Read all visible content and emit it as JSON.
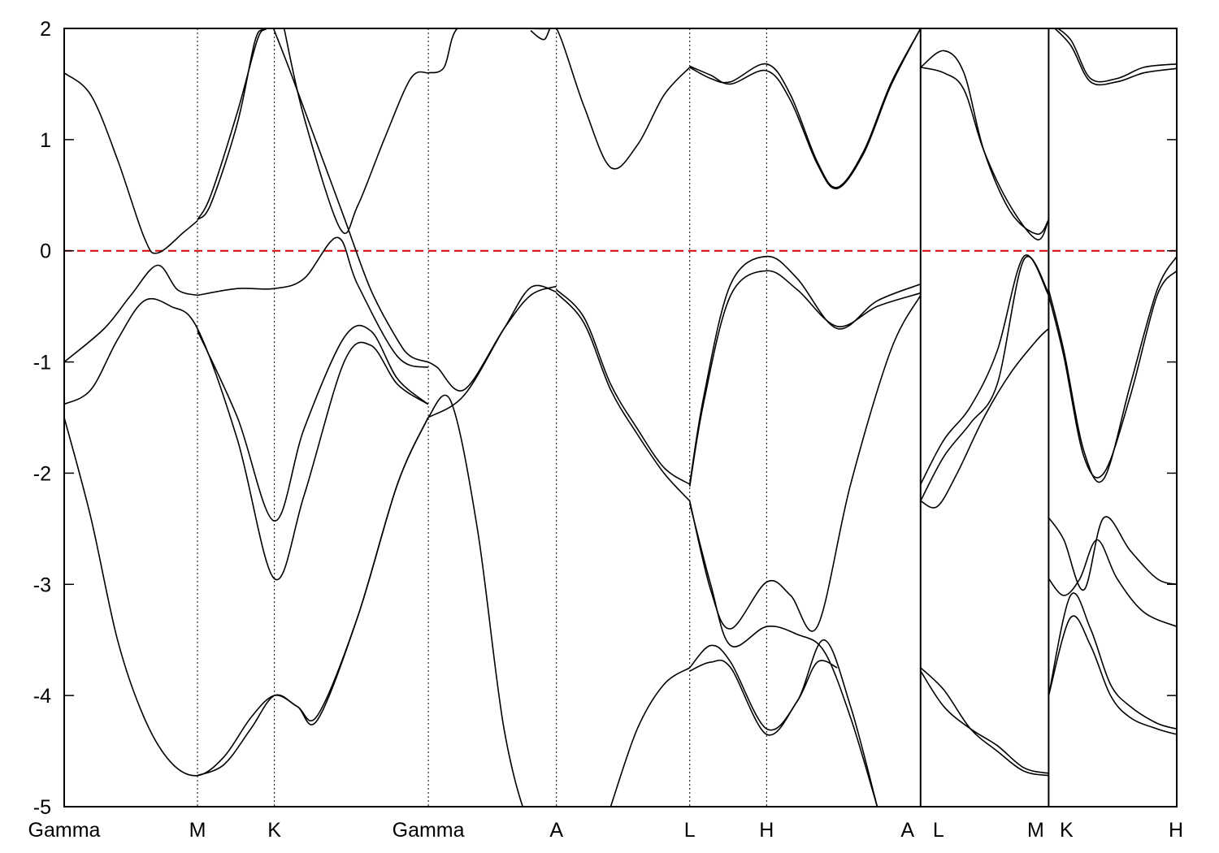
{
  "chart_data": {
    "type": "line",
    "title": "",
    "xlabel": "",
    "ylabel": "",
    "ylim": [
      -5,
      2
    ],
    "yticks": [
      2,
      1,
      0,
      -1,
      -2,
      -3,
      -4,
      -5
    ],
    "ytick_labels": [
      "2",
      "1",
      "0",
      "-1",
      "-2",
      "-3",
      "-4",
      "-5"
    ],
    "grid": false,
    "legend": "none",
    "fermi_level": 0,
    "colors": {
      "bands": "#000000",
      "fermi_level": "#d40000"
    },
    "kpath": [
      {
        "label": "Gamma",
        "x": 0.0
      },
      {
        "label": "M",
        "x": 1.0
      },
      {
        "label": "K",
        "x": 1.577
      },
      {
        "label": "Gamma",
        "x": 2.732
      },
      {
        "label": "A",
        "x": 3.693
      },
      {
        "label": "L",
        "x": 4.693
      },
      {
        "label": "H",
        "x": 5.27
      },
      {
        "label": "A",
        "x": 6.425
      },
      {
        "label": "L",
        "x": 6.425
      },
      {
        "label": "M",
        "x": 7.386
      },
      {
        "label": "K",
        "x": 7.386
      },
      {
        "label": "H",
        "x": 8.347
      }
    ],
    "xlim": [
      0,
      8.347
    ],
    "segment_breaks": [
      6.425,
      7.386
    ],
    "series": [
      {
        "x": [
          0.0,
          0.2,
          0.4,
          0.6,
          0.7,
          0.9,
          1.0
        ],
        "values": [
          1.6,
          1.4,
          0.82,
          0.12,
          -0.02,
          0.17,
          0.27
        ]
      },
      {
        "x": [
          1.0,
          1.1,
          1.3,
          1.45,
          1.52,
          1.6
        ],
        "values": [
          0.28,
          0.5,
          1.25,
          1.9,
          2.0,
          2.1
        ]
      },
      {
        "x": [
          1.0,
          1.1,
          1.3,
          1.43,
          1.5,
          1.6
        ],
        "values": [
          0.28,
          0.42,
          1.15,
          1.88,
          2.0,
          2.1
        ]
      },
      {
        "x": [
          1.57,
          1.7,
          1.9,
          2.1,
          2.3,
          2.5,
          2.6,
          2.73
        ],
        "values": [
          2.0,
          1.6,
          0.95,
          0.3,
          -0.35,
          -0.8,
          -0.95,
          -1.0
        ]
      },
      {
        "x": [
          1.65,
          1.8,
          2.07,
          2.2,
          2.4,
          2.6,
          2.73
        ],
        "values": [
          2.0,
          1.2,
          0.2,
          0.4,
          1.0,
          1.55,
          1.6
        ]
      },
      {
        "x": [
          1.0,
          1.3,
          1.577,
          1.8,
          2.05,
          2.2,
          2.5,
          2.73
        ],
        "values": [
          -0.4,
          -0.34,
          -0.34,
          -0.25,
          0.12,
          -0.3,
          -0.95,
          -1.05
        ]
      },
      {
        "x": [
          0.0,
          0.3,
          0.5,
          0.7,
          0.85,
          1.0
        ],
        "values": [
          -1.0,
          -0.7,
          -0.4,
          -0.13,
          -0.35,
          -0.4
        ]
      },
      {
        "x": [
          0.0,
          0.2,
          0.4,
          0.6,
          0.8,
          1.0,
          1.3,
          1.577,
          1.8,
          2.1,
          2.3,
          2.5,
          2.73
        ],
        "values": [
          -1.38,
          -1.25,
          -0.8,
          -0.45,
          -0.5,
          -0.7,
          -1.7,
          -2.95,
          -2.2,
          -1.0,
          -0.85,
          -1.2,
          -1.38
        ]
      },
      {
        "x": [
          1.0,
          1.3,
          1.577,
          1.8,
          2.1,
          2.3,
          2.5,
          2.73
        ],
        "values": [
          -0.72,
          -1.5,
          -2.43,
          -1.6,
          -0.78,
          -0.72,
          -1.15,
          -1.38
        ]
      },
      {
        "x": [
          0.0,
          0.2,
          0.4,
          0.6,
          0.8,
          1.0,
          1.2,
          1.4,
          1.577,
          1.75,
          1.9,
          2.2,
          2.5,
          2.73
        ],
        "values": [
          -1.5,
          -2.4,
          -3.5,
          -4.2,
          -4.6,
          -4.72,
          -4.55,
          -4.2,
          -4.0,
          -4.1,
          -4.22,
          -3.3,
          -2.1,
          -1.5
        ]
      },
      {
        "x": [
          1.0,
          1.2,
          1.4,
          1.577,
          1.75,
          1.9,
          2.2,
          2.5,
          2.73
        ],
        "values": [
          -4.72,
          -4.62,
          -4.3,
          -4.0,
          -4.1,
          -4.18,
          -3.3,
          -2.1,
          -1.5
        ]
      },
      {
        "x": [
          2.73,
          2.85,
          2.95,
          3.2,
          3.5,
          3.693
        ],
        "values": [
          1.6,
          1.65,
          2.0,
          2.05,
          2.0,
          2.0
        ]
      },
      {
        "x": [
          2.73,
          2.8,
          3.0,
          3.3,
          3.5,
          3.693
        ],
        "values": [
          -1.0,
          -1.05,
          -1.25,
          -0.7,
          -0.4,
          -0.32
        ]
      },
      {
        "x": [
          2.73,
          3.0,
          3.3,
          3.5,
          3.693
        ],
        "values": [
          -1.5,
          -1.3,
          -0.7,
          -0.33,
          -0.37
        ]
      },
      {
        "x": [
          2.73,
          2.9,
          3.1,
          3.3,
          3.5,
          3.693
        ],
        "values": [
          -1.5,
          -1.35,
          -2.5,
          -4.3,
          -5.2,
          -5.5
        ]
      },
      {
        "x": [
          3.5,
          3.6,
          3.693,
          3.9,
          4.1,
          4.3,
          4.5,
          4.693
        ],
        "values": [
          1.98,
          1.9,
          2.0,
          1.3,
          0.75,
          0.95,
          1.4,
          1.65
        ]
      },
      {
        "x": [
          3.693,
          3.9,
          4.1,
          4.3,
          4.5,
          4.693
        ],
        "values": [
          -0.35,
          -0.6,
          -1.2,
          -1.6,
          -1.95,
          -2.1
        ]
      },
      {
        "x": [
          3.693,
          3.9,
          4.1,
          4.3,
          4.5,
          4.693
        ],
        "values": [
          -0.38,
          -0.65,
          -1.25,
          -1.65,
          -2.0,
          -2.25
        ]
      },
      {
        "x": [
          4.1,
          4.3,
          4.5,
          4.693
        ],
        "values": [
          -5.0,
          -4.3,
          -3.9,
          -3.75
        ]
      },
      {
        "x": [
          4.693,
          4.85,
          5.0,
          5.27,
          5.45,
          5.65,
          5.8,
          6.0,
          6.2,
          6.425
        ],
        "values": [
          1.65,
          1.55,
          1.52,
          1.68,
          1.4,
          0.8,
          0.57,
          0.9,
          1.5,
          2.0
        ]
      },
      {
        "x": [
          4.693,
          4.85,
          5.0,
          5.27,
          5.45,
          5.65,
          5.8,
          6.0,
          6.2,
          6.425
        ],
        "values": [
          1.66,
          1.58,
          1.5,
          1.62,
          1.35,
          0.78,
          0.56,
          0.88,
          1.48,
          2.0
        ]
      },
      {
        "x": [
          4.693,
          4.8,
          5.0,
          5.27,
          5.5,
          5.8,
          6.1,
          6.425
        ],
        "values": [
          -2.1,
          -1.3,
          -0.3,
          -0.05,
          -0.25,
          -0.7,
          -0.45,
          -0.3
        ]
      },
      {
        "x": [
          4.693,
          4.8,
          5.0,
          5.27,
          5.5,
          5.8,
          6.1,
          6.425
        ],
        "values": [
          -2.12,
          -1.35,
          -0.4,
          -0.18,
          -0.35,
          -0.68,
          -0.5,
          -0.38
        ]
      },
      {
        "x": [
          4.693,
          4.85,
          5.0,
          5.27,
          5.45,
          5.65,
          5.9,
          6.2,
          6.425
        ],
        "values": [
          -2.25,
          -3.05,
          -3.4,
          -2.98,
          -3.1,
          -3.38,
          -2.1,
          -0.9,
          -0.4
        ]
      },
      {
        "x": [
          4.693,
          4.85,
          5.0,
          5.27,
          5.5,
          5.7,
          5.9,
          6.1
        ],
        "values": [
          -2.27,
          -3.0,
          -3.55,
          -3.38,
          -3.45,
          -3.6,
          -4.2,
          -5.0
        ]
      },
      {
        "x": [
          4.693,
          4.85,
          5.0,
          5.27,
          5.5,
          5.7,
          5.9,
          6.1
        ],
        "values": [
          -3.75,
          -3.55,
          -3.7,
          -4.3,
          -4.05,
          -3.5,
          -4.1,
          -5.0
        ]
      },
      {
        "x": [
          4.693,
          4.85,
          5.0,
          5.27,
          5.5,
          5.65,
          5.8
        ],
        "values": [
          -3.78,
          -3.7,
          -3.75,
          -4.35,
          -4.05,
          -3.7,
          -3.75
        ]
      },
      {
        "x": [
          6.425,
          6.6,
          6.75,
          6.9,
          7.1,
          7.3,
          7.386
        ],
        "values": [
          1.65,
          1.8,
          1.6,
          0.9,
          0.35,
          0.15,
          0.28
        ]
      },
      {
        "x": [
          6.425,
          6.6,
          6.75,
          6.9,
          7.1,
          7.3,
          7.386
        ],
        "values": [
          1.65,
          1.6,
          1.45,
          0.9,
          0.4,
          0.1,
          0.28
        ]
      },
      {
        "x": [
          6.425,
          6.6,
          6.8,
          7.0,
          7.2,
          7.386
        ],
        "values": [
          -2.1,
          -1.7,
          -1.4,
          -0.9,
          -0.05,
          -0.4
        ]
      },
      {
        "x": [
          6.425,
          6.6,
          6.8,
          7.0,
          7.2,
          7.386
        ],
        "values": [
          -2.25,
          -1.85,
          -1.55,
          -1.2,
          -0.08,
          -0.38
        ]
      },
      {
        "x": [
          6.425,
          6.55,
          6.7,
          6.9,
          7.1,
          7.3,
          7.386
        ],
        "values": [
          -2.25,
          -2.3,
          -2.0,
          -1.5,
          -1.1,
          -0.8,
          -0.7
        ]
      },
      {
        "x": [
          6.425,
          6.6,
          6.8,
          7.0,
          7.2,
          7.386
        ],
        "values": [
          -3.75,
          -3.95,
          -4.3,
          -4.5,
          -4.68,
          -4.72
        ]
      },
      {
        "x": [
          6.425,
          6.6,
          6.8,
          7.0,
          7.2,
          7.386
        ],
        "values": [
          -3.78,
          -4.1,
          -4.3,
          -4.45,
          -4.65,
          -4.7
        ]
      },
      {
        "x": [
          7.386,
          7.55,
          7.7,
          7.9,
          8.1,
          8.347
        ],
        "values": [
          2.05,
          1.9,
          1.55,
          1.55,
          1.65,
          1.68
        ]
      },
      {
        "x": [
          7.386,
          7.55,
          7.7,
          7.9,
          8.1,
          8.347
        ],
        "values": [
          2.05,
          1.85,
          1.52,
          1.52,
          1.6,
          1.64
        ]
      },
      {
        "x": [
          7.386,
          7.5,
          7.65,
          7.8,
          8.0,
          8.2,
          8.347
        ],
        "values": [
          -0.35,
          -0.9,
          -1.8,
          -2.05,
          -1.2,
          -0.35,
          -0.05
        ]
      },
      {
        "x": [
          7.386,
          7.5,
          7.65,
          7.8,
          8.0,
          8.2,
          8.347
        ],
        "values": [
          -0.4,
          -0.95,
          -1.85,
          -2.0,
          -1.3,
          -0.4,
          -0.18
        ]
      },
      {
        "x": [
          7.386,
          7.5,
          7.65,
          7.8,
          8.0,
          8.2,
          8.347
        ],
        "values": [
          -2.4,
          -2.6,
          -3.05,
          -2.4,
          -2.7,
          -2.95,
          -3.0
        ]
      },
      {
        "x": [
          7.386,
          7.5,
          7.62,
          7.75,
          7.9,
          8.1,
          8.347
        ],
        "values": [
          -2.95,
          -3.1,
          -2.95,
          -2.6,
          -2.95,
          -3.25,
          -3.38
        ]
      },
      {
        "x": [
          7.386,
          7.55,
          7.7,
          7.85,
          8.0,
          8.2,
          8.347
        ],
        "values": [
          -4.0,
          -3.1,
          -3.4,
          -3.9,
          -4.1,
          -4.25,
          -4.3
        ]
      },
      {
        "x": [
          7.386,
          7.55,
          7.7,
          7.85,
          8.0,
          8.2,
          8.347
        ],
        "values": [
          -4.0,
          -3.3,
          -3.55,
          -4.0,
          -4.2,
          -4.3,
          -4.35
        ]
      }
    ]
  }
}
